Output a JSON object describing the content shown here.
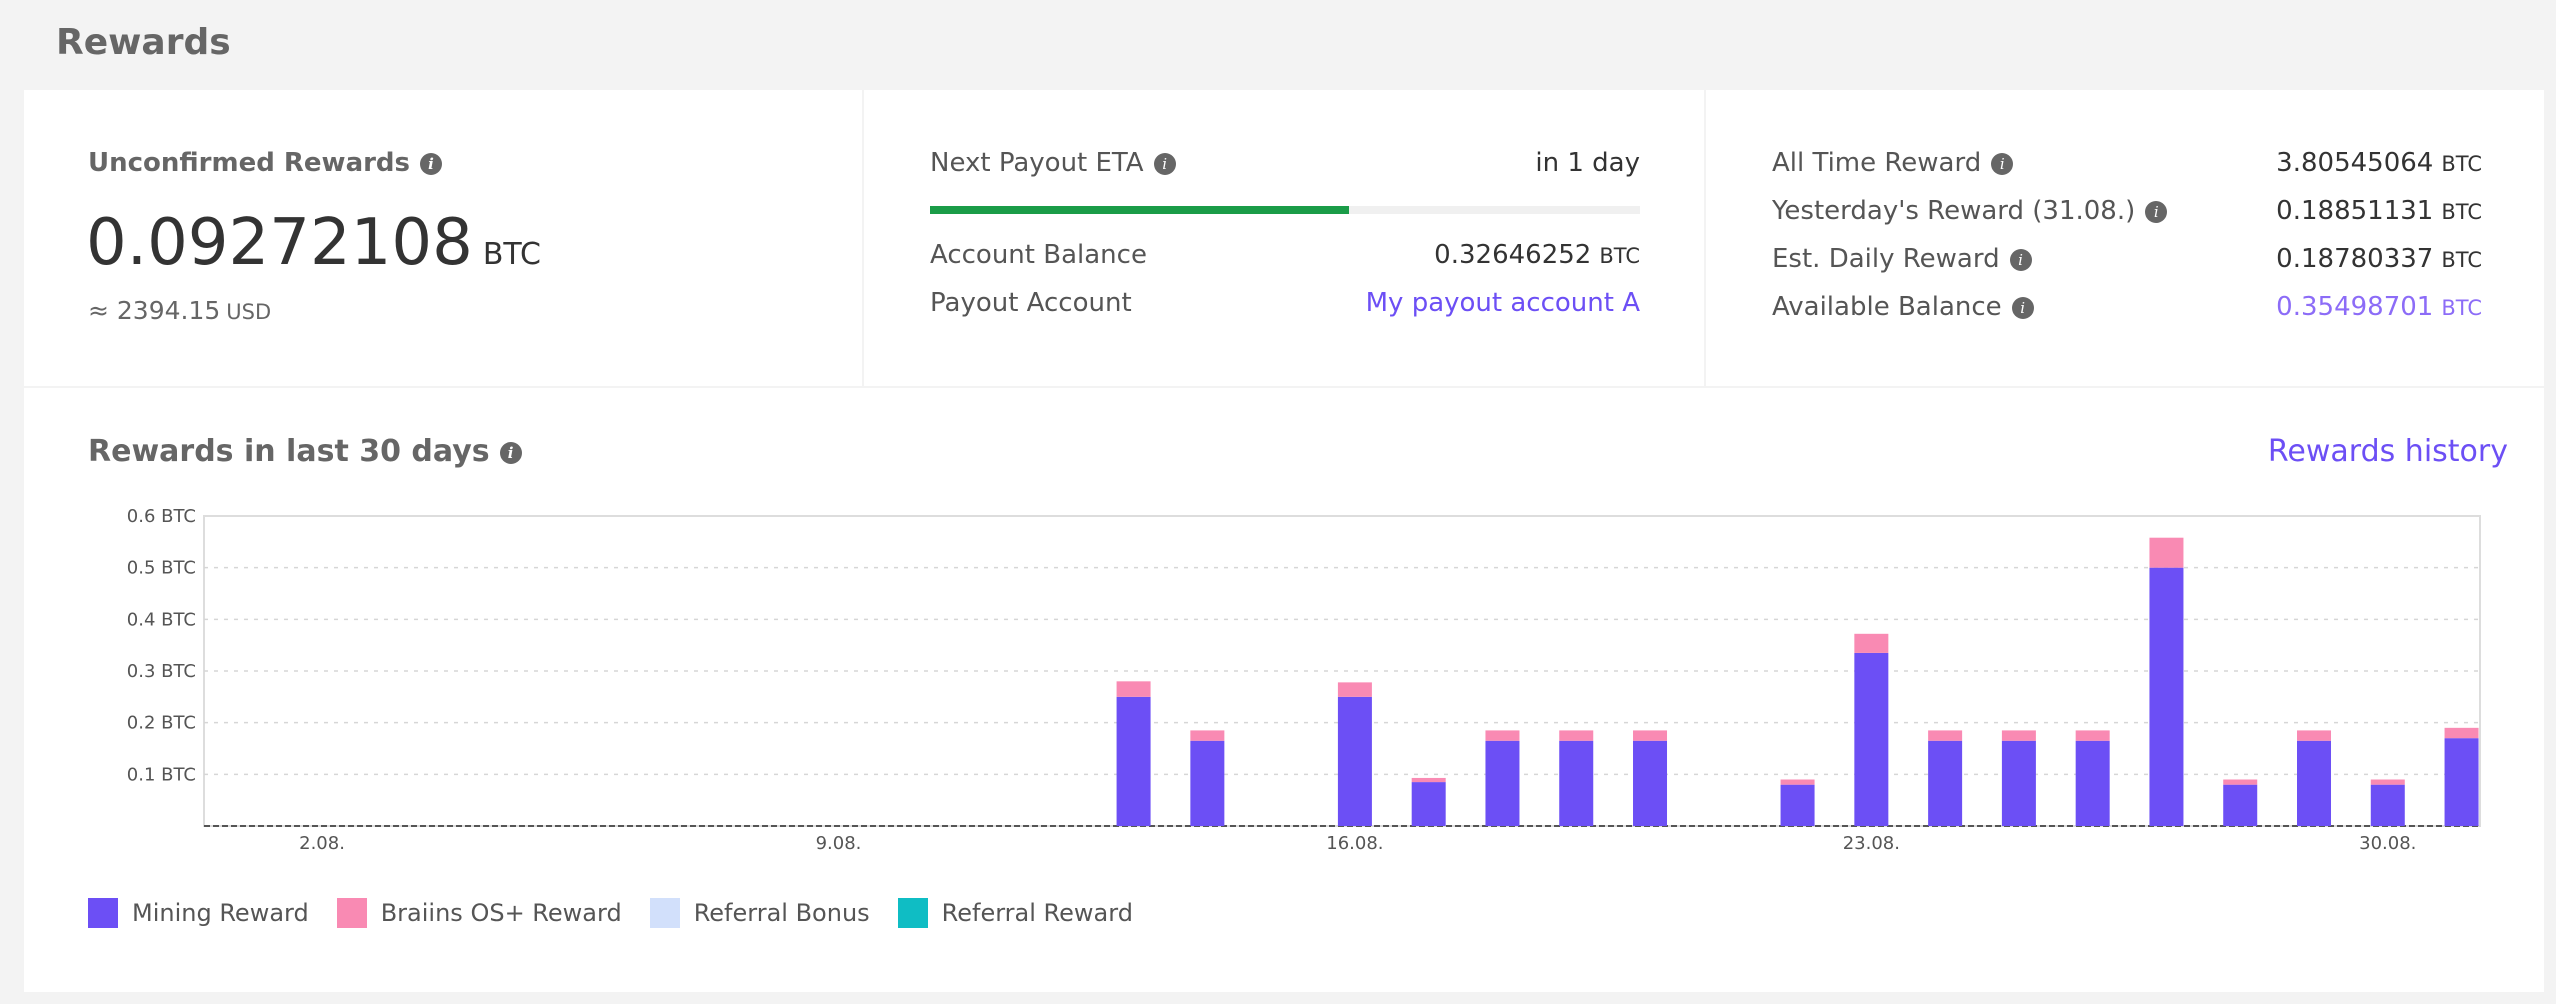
{
  "page_title": "Rewards",
  "unconfirmed": {
    "label": "Unconfirmed Rewards",
    "value": "0.09272108",
    "unit": "BTC",
    "usd_value": "≈ 2394.15",
    "usd_unit": "USD"
  },
  "payout": {
    "eta_label": "Next Payout ETA",
    "eta_value": "in 1 day",
    "progress": 0.59,
    "balance_label": "Account Balance",
    "balance_value": "0.32646252",
    "balance_unit": "BTC",
    "account_label": "Payout Account",
    "account_value": "My payout account A"
  },
  "stats": {
    "all_time_label": "All Time Reward",
    "all_time_value": "3.80545064",
    "yesterday_label": "Yesterday's Reward (31.08.)",
    "yesterday_value": "0.18851131",
    "daily_label": "Est. Daily Reward",
    "daily_value": "0.18780337",
    "available_label": "Available Balance",
    "available_value": "0.35498701",
    "unit": "BTC"
  },
  "chart_section": {
    "title": "Rewards in last 30 days",
    "history_link": "Rewards history"
  },
  "chart_data": {
    "type": "bar",
    "stacked": true,
    "days": [
      1,
      2,
      3,
      4,
      5,
      6,
      7,
      8,
      9,
      10,
      11,
      12,
      13,
      14,
      15,
      16,
      17,
      18,
      19,
      20,
      21,
      22,
      23,
      24,
      25,
      26,
      27,
      28,
      29,
      30,
      31
    ],
    "x_tick_labels": [
      {
        "day": 2,
        "label": "2.08."
      },
      {
        "day": 9,
        "label": "9.08."
      },
      {
        "day": 16,
        "label": "16.08."
      },
      {
        "day": 23,
        "label": "23.08."
      },
      {
        "day": 30,
        "label": "30.08."
      }
    ],
    "y_ticks": [
      {
        "value": 0.1,
        "label": "0.1 BTC"
      },
      {
        "value": 0.2,
        "label": "0.2 BTC"
      },
      {
        "value": 0.3,
        "label": "0.3 BTC"
      },
      {
        "value": 0.4,
        "label": "0.4 BTC"
      },
      {
        "value": 0.5,
        "label": "0.5 BTC"
      },
      {
        "value": 0.6,
        "label": "0.6 BTC"
      }
    ],
    "ylim": [
      0,
      0.6
    ],
    "grid": true,
    "series": [
      {
        "name": "Mining Reward",
        "color": "#6c4ff5",
        "values": [
          0,
          0,
          0,
          0,
          0,
          0,
          0,
          0,
          0,
          0,
          0,
          0,
          0.25,
          0.165,
          0,
          0.25,
          0.085,
          0.165,
          0.165,
          0.165,
          0,
          0.08,
          0.335,
          0.165,
          0.165,
          0.165,
          0.5,
          0.08,
          0.165,
          0.08,
          0.17
        ]
      },
      {
        "name": "Braiins OS+ Reward",
        "color": "#f98ab3",
        "values": [
          0,
          0,
          0,
          0,
          0,
          0,
          0,
          0,
          0,
          0,
          0,
          0,
          0.03,
          0.02,
          0,
          0.028,
          0.008,
          0.02,
          0.02,
          0.02,
          0,
          0.01,
          0.037,
          0.02,
          0.02,
          0.02,
          0.058,
          0.01,
          0.02,
          0.01,
          0.02
        ]
      },
      {
        "name": "Referral Bonus",
        "color": "#d2e0fb",
        "values": [
          0,
          0,
          0,
          0,
          0,
          0,
          0,
          0,
          0,
          0,
          0,
          0,
          0,
          0,
          0,
          0,
          0,
          0,
          0,
          0,
          0,
          0,
          0,
          0,
          0,
          0,
          0,
          0,
          0,
          0,
          0
        ]
      },
      {
        "name": "Referral Reward",
        "color": "#0fbdc4",
        "values": [
          0,
          0,
          0,
          0,
          0,
          0,
          0,
          0,
          0,
          0,
          0,
          0,
          0,
          0,
          0,
          0,
          0,
          0,
          0,
          0,
          0,
          0,
          0,
          0,
          0,
          0,
          0,
          0,
          0,
          0,
          0
        ]
      }
    ]
  }
}
